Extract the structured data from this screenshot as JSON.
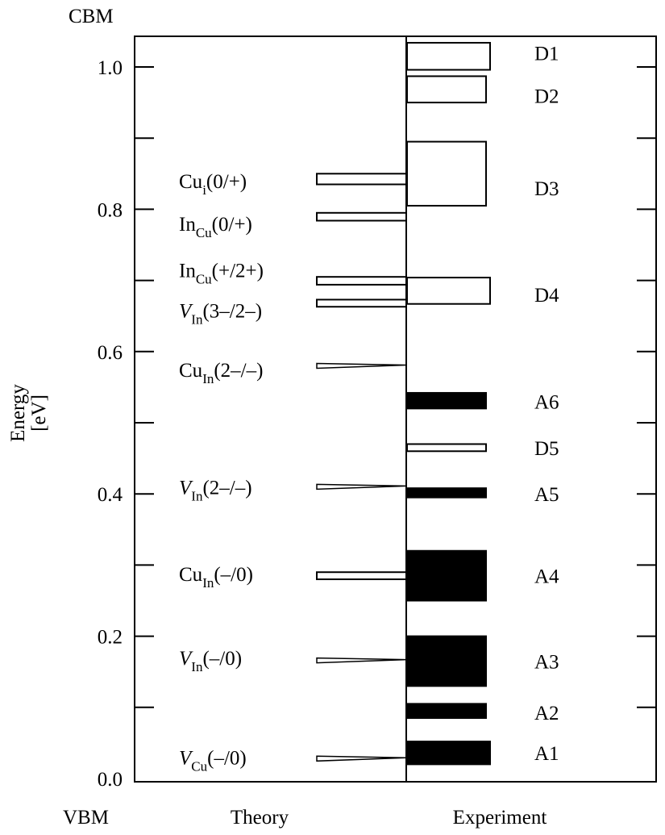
{
  "chart_data": {
    "type": "bar",
    "ylabel_lines": [
      "Energy",
      "[eV]"
    ],
    "ylim": [
      0.0,
      1.05
    ],
    "y_ticks": [
      "0.0",
      "0.2",
      "0.4",
      "0.6",
      "0.8",
      "1.0"
    ],
    "top_label": "CBM",
    "bottom_label": "VBM",
    "panels": {
      "theory": "Theory",
      "experiment": "Experiment"
    },
    "theory_levels": [
      {
        "name": "Cu_i(0/+)",
        "base": "Cu",
        "sub": "i",
        "charge": "(0/+)",
        "italic": false,
        "low": 0.835,
        "high": 0.85
      },
      {
        "name": "In_Cu(0/+)",
        "base": "In",
        "sub": "Cu",
        "charge": "(0/+)",
        "italic": false,
        "low": 0.784,
        "high": 0.795
      },
      {
        "name": "In_Cu(+/2+)",
        "base": "In",
        "sub": "Cu",
        "charge": "(+/2+)",
        "italic": false,
        "low": 0.694,
        "high": 0.705
      },
      {
        "name": "V_In(3-/2-)",
        "base": "V",
        "sub": "In",
        "charge": "(3–/2–)",
        "italic": true,
        "low": 0.663,
        "high": 0.673
      },
      {
        "name": "Cu_In(2-/-)",
        "base": "Cu",
        "sub": "In",
        "charge": "(2–/–)",
        "italic": false,
        "low": 0.58,
        "high": 0.58
      },
      {
        "name": "V_In(2-/-)",
        "base": "V",
        "sub": "In",
        "charge": "(2–/–)",
        "italic": true,
        "low": 0.41,
        "high": 0.41
      },
      {
        "name": "Cu_In(-/0)",
        "base": "Cu",
        "sub": "In",
        "charge": "(–/0)",
        "italic": false,
        "low": 0.28,
        "high": 0.29
      },
      {
        "name": "V_In(-/0)",
        "base": "V",
        "sub": "In",
        "charge": "(–/0)",
        "italic": true,
        "low": 0.166,
        "high": 0.166
      },
      {
        "name": "V_Cu(-/0)",
        "base": "V",
        "sub": "Cu",
        "charge": "(–/0)",
        "italic": true,
        "low": 0.028,
        "high": 0.028
      }
    ],
    "experiment_levels": [
      {
        "label": "D1",
        "low": 0.996,
        "high": 1.034,
        "filled": false,
        "reach": 1.0
      },
      {
        "label": "D2",
        "low": 0.95,
        "high": 0.987,
        "filled": false,
        "reach": 0.95
      },
      {
        "label": "D3",
        "low": 0.805,
        "high": 0.895,
        "filled": false,
        "reach": 0.95
      },
      {
        "label": "D4",
        "low": 0.667,
        "high": 0.704,
        "filled": false,
        "reach": 1.0
      },
      {
        "label": "A6",
        "low": 0.52,
        "high": 0.542,
        "filled": true,
        "reach": 0.95
      },
      {
        "label": "D5",
        "low": 0.46,
        "high": 0.47,
        "filled": false,
        "reach": 0.95
      },
      {
        "label": "A5",
        "low": 0.395,
        "high": 0.408,
        "filled": true,
        "reach": 0.95
      },
      {
        "label": "A4",
        "low": 0.25,
        "high": 0.32,
        "filled": true,
        "reach": 0.95
      },
      {
        "label": "A3",
        "low": 0.13,
        "high": 0.2,
        "filled": true,
        "reach": 0.95
      },
      {
        "label": "A2",
        "low": 0.085,
        "high": 0.105,
        "filled": true,
        "reach": 0.95
      },
      {
        "label": "A1",
        "low": 0.02,
        "high": 0.052,
        "filled": true,
        "reach": 1.0
      }
    ],
    "experiment_label_y": {
      "D1": 1.02,
      "D2": 0.96,
      "D3": 0.83,
      "D4": 0.68,
      "A6": 0.53,
      "D5": 0.465,
      "A5": 0.4,
      "A4": 0.285,
      "A3": 0.165,
      "A2": 0.093,
      "A1": 0.036
    },
    "theory_label_y": {
      "Cu_i(0/+)": 0.84,
      "In_Cu(0/+)": 0.78,
      "In_Cu(+/2+)": 0.715,
      "V_In(3-/2-)": 0.658,
      "Cu_In(2-/-)": 0.575,
      "V_In(2-/-)": 0.41,
      "Cu_In(-/0)": 0.288,
      "V_In(-/0)": 0.17,
      "V_Cu(-/0)": 0.03
    }
  }
}
